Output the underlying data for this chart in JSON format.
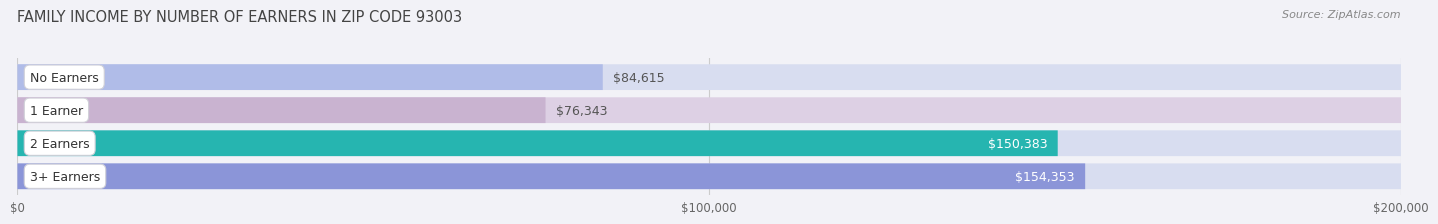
{
  "title": "FAMILY INCOME BY NUMBER OF EARNERS IN ZIP CODE 93003",
  "source": "Source: ZipAtlas.com",
  "categories": [
    "No Earners",
    "1 Earner",
    "2 Earners",
    "3+ Earners"
  ],
  "values": [
    84615,
    76343,
    150383,
    154353
  ],
  "bar_colors": [
    "#b0bce8",
    "#c9b3d0",
    "#26b5b0",
    "#8b95d8"
  ],
  "bar_bg_colors": [
    "#d8ddf0",
    "#ddd0e4",
    "#d8ddf0",
    "#d8ddf0"
  ],
  "label_colors": [
    "#555555",
    "#555555",
    "#ffffff",
    "#ffffff"
  ],
  "background_color": "#f2f2f7",
  "xlim": [
    0,
    200000
  ],
  "xtick_labels": [
    "$0",
    "$100,000",
    "$200,000"
  ],
  "title_fontsize": 10.5,
  "source_fontsize": 8,
  "label_fontsize": 9,
  "category_fontsize": 9
}
